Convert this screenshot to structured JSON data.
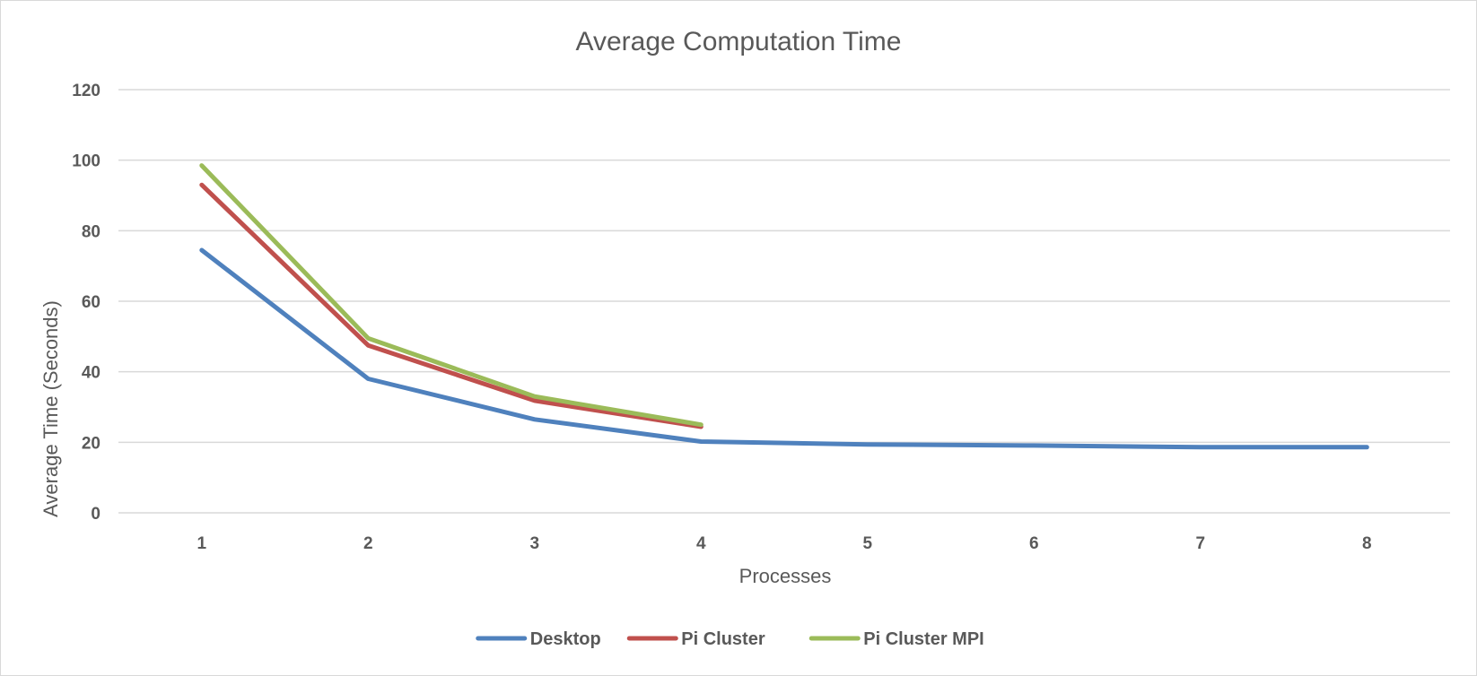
{
  "chart_data": {
    "type": "line",
    "title": "Average Computation Time",
    "xlabel": "Processes",
    "ylabel": "Average Time (Seconds)",
    "x": [
      1,
      2,
      3,
      4,
      5,
      6,
      7,
      8
    ],
    "categories": [
      "1",
      "2",
      "3",
      "4",
      "5",
      "6",
      "7",
      "8"
    ],
    "ylim": [
      0,
      120
    ],
    "yticks": [
      0,
      20,
      40,
      60,
      80,
      100,
      120
    ],
    "ytick_labels": [
      "0",
      "20",
      "40",
      "60",
      "80",
      "100",
      "120"
    ],
    "grid": true,
    "legend_position": "bottom",
    "series": [
      {
        "name": "Desktop",
        "color": "#4f81bd",
        "values": [
          74.5,
          38,
          26.5,
          20.2,
          19.4,
          19.1,
          18.6,
          18.6
        ]
      },
      {
        "name": "Pi Cluster",
        "color": "#c0504d",
        "values": [
          93,
          47.5,
          31.8,
          24.4,
          null,
          null,
          null,
          null
        ]
      },
      {
        "name": "Pi Cluster MPI",
        "color": "#9bbb59",
        "values": [
          98.5,
          49.5,
          33,
          25,
          null,
          null,
          null,
          null
        ]
      }
    ]
  }
}
